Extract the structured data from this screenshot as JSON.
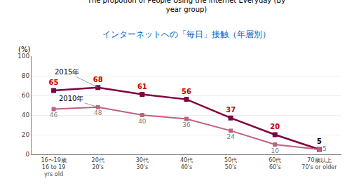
{
  "chart_data": {
    "type": "line",
    "title": "The propotion of People Using the internet Everyday (By\nyear group)",
    "subtitle": "インターネットへの「毎日」接触（年層別）",
    "ylabel": "(%)",
    "categories": [
      "16〜19歳\n16 to 19\nyrs old",
      "20代\n20's",
      "30代\n30's",
      "40代\n40's",
      "50代\n50's",
      "60代\n60's",
      "70歳以上\n70's or older"
    ],
    "series": [
      {
        "name": "2015年",
        "color": "#800040",
        "marker": "square",
        "values": [
          65,
          68,
          61,
          56,
          37,
          20,
          5
        ]
      },
      {
        "name": "2010年",
        "color": "#c06080",
        "marker": "square",
        "values": [
          46,
          48,
          40,
          36,
          24,
          10,
          5
        ]
      }
    ],
    "ylim": [
      0,
      100
    ],
    "yticks": [
      0,
      20,
      40,
      60,
      80,
      100
    ],
    "grid": true,
    "data_labels": true
  }
}
